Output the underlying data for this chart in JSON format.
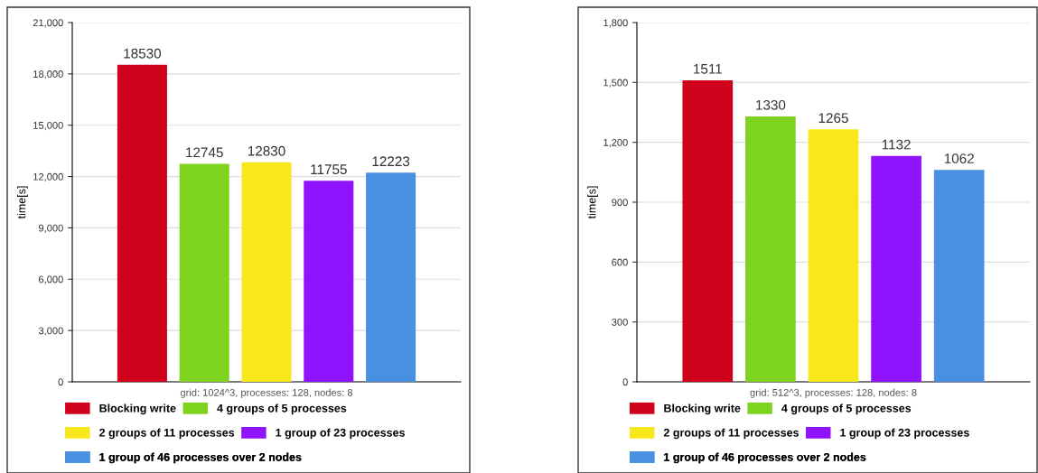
{
  "chart_data": [
    {
      "type": "bar",
      "categories": [
        null
      ],
      "xlabel": "grid: 1024^3, processes: 128, nodes: 8",
      "ylabel": "time[s]",
      "series": [
        {
          "name": "Blocking write",
          "color": "#d0021b",
          "values": [
            18530
          ]
        },
        {
          "name": "4 groups of 5 processes",
          "color": "#7ed321",
          "values": [
            12745
          ]
        },
        {
          "name": "2 groups of 11 processes",
          "color": "#f8e71c",
          "values": [
            12830
          ]
        },
        {
          "name": "1 group of 23 processes",
          "color": "#9013fe",
          "values": [
            11755
          ]
        },
        {
          "name": "1 group of 46 processes over 2 nodes",
          "color": "#4a90e2",
          "values": [
            12223
          ]
        }
      ],
      "ylim": [
        0,
        21000
      ],
      "yticks": [
        0,
        {
          "value": 3000,
          "label": "3,000"
        },
        {
          "value": 6000,
          "label": "6,000"
        },
        {
          "value": 9000,
          "label": "9,000"
        },
        {
          "value": 12000,
          "label": "12,000"
        },
        {
          "value": 15000,
          "label": "15,000"
        },
        {
          "value": 18000,
          "label": "18,000"
        },
        {
          "value": 21000,
          "label": "21,000"
        }
      ],
      "grid": "y",
      "legend": "bottom",
      "data_labels": true
    },
    {
      "type": "bar",
      "categories": [
        null
      ],
      "xlabel": "grid: 512^3, processes: 128, nodes: 8",
      "ylabel": "time[s]",
      "series": [
        {
          "name": "Blocking write",
          "color": "#d0021b",
          "values": [
            1511
          ]
        },
        {
          "name": "4 groups of 5 processes",
          "color": "#7ed321",
          "values": [
            1330
          ]
        },
        {
          "name": "2 groups of 11 processes",
          "color": "#f8e71c",
          "values": [
            1265
          ]
        },
        {
          "name": "1 group of 23 processes",
          "color": "#9013fe",
          "values": [
            1132
          ]
        },
        {
          "name": "1 group of 46 processes over 2 nodes",
          "color": "#4a90e2",
          "values": [
            1062
          ]
        }
      ],
      "ylim": [
        0,
        1800
      ],
      "yticks": [
        0,
        300,
        600,
        900,
        {
          "value": 1200,
          "label": "1,200"
        },
        {
          "value": 1500,
          "label": "1,500"
        },
        {
          "value": 1800,
          "label": "1,800"
        }
      ],
      "grid": "y",
      "legend": "bottom",
      "data_labels": true
    }
  ]
}
